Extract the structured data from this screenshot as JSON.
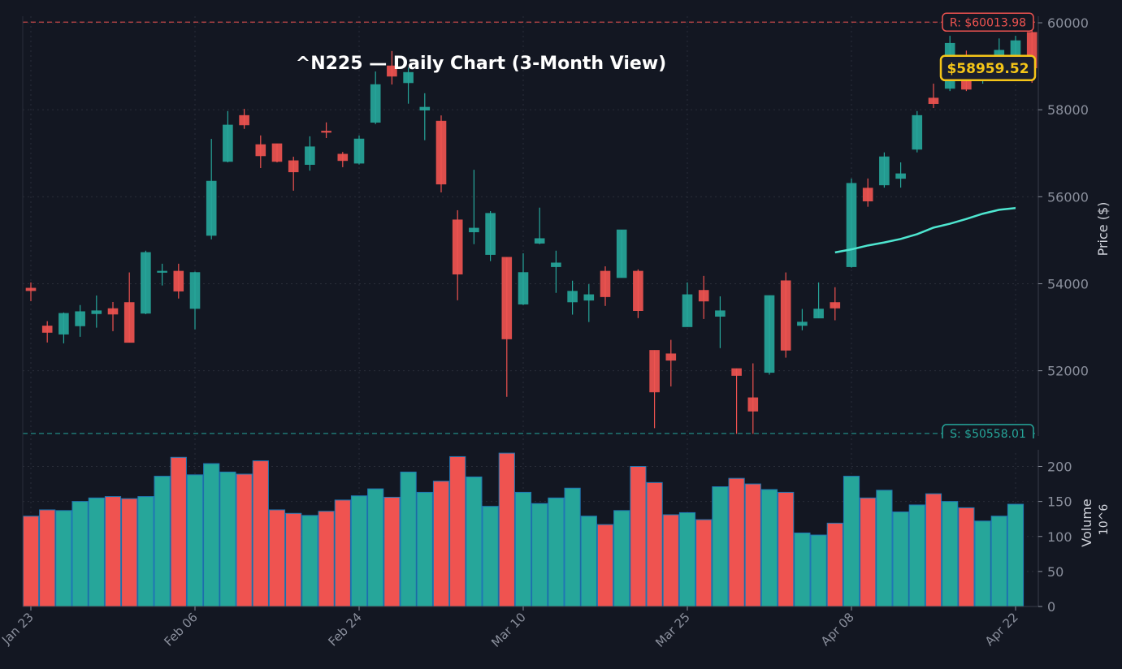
{
  "chart_data": {
    "type": "candlestick",
    "title": "^N225 — Daily Chart (3-Month View)",
    "ylabel": "Price ($)",
    "volume_ylabel": "Volume",
    "volume_unit": "10^6",
    "ylim": [
      50500,
      60150
    ],
    "volume_ylim": [
      0,
      240
    ],
    "yticks": [
      52000,
      54000,
      56000,
      58000,
      60000
    ],
    "volume_yticks": [
      0,
      50,
      100,
      150,
      200
    ],
    "grid": true,
    "xticks": [
      {
        "index": 0,
        "label": "Jan 23"
      },
      {
        "index": 10,
        "label": "Feb 06"
      },
      {
        "index": 20,
        "label": "Feb 24"
      },
      {
        "index": 30,
        "label": "Mar 10"
      },
      {
        "index": 40,
        "label": "Mar 25"
      },
      {
        "index": 50,
        "label": "Apr 08"
      },
      {
        "index": 60,
        "label": "Apr 22"
      }
    ],
    "colors": {
      "background": "#131722",
      "up": "#26a69a",
      "down": "#ef5350",
      "ma": "#4ee6d0",
      "grid": "#2a2e39",
      "volume_edge": "#1f77b4",
      "price_label": "#f5c518"
    },
    "resistance": {
      "value": 60013.98,
      "label": "R: $60013.98"
    },
    "support": {
      "value": 50558.01,
      "label": "S: $50558.01"
    },
    "last_price": {
      "value": 58959.52,
      "label": "$58959.52"
    },
    "ohlc": [
      [
        53900,
        54030,
        53600,
        53840
      ],
      [
        53030,
        53140,
        52650,
        52880
      ],
      [
        52840,
        53340,
        52630,
        53320
      ],
      [
        53030,
        53510,
        52780,
        53360
      ],
      [
        53310,
        53730,
        52990,
        53380
      ],
      [
        53430,
        53580,
        52910,
        53300
      ],
      [
        53570,
        54260,
        52650,
        52650
      ],
      [
        53320,
        54760,
        53300,
        54720
      ],
      [
        54260,
        54460,
        53960,
        54290
      ],
      [
        54290,
        54460,
        53660,
        53830
      ],
      [
        53430,
        54280,
        52950,
        54260
      ],
      [
        55110,
        57330,
        55020,
        56360
      ],
      [
        56810,
        57970,
        56790,
        57650
      ],
      [
        57870,
        58020,
        57560,
        57650
      ],
      [
        57200,
        57410,
        56660,
        56940
      ],
      [
        57220,
        57220,
        56790,
        56810
      ],
      [
        56830,
        56920,
        56140,
        56570
      ],
      [
        56740,
        57390,
        56600,
        57150
      ],
      [
        57510,
        57710,
        57350,
        57480
      ],
      [
        56980,
        57030,
        56680,
        56830
      ],
      [
        56770,
        57410,
        56740,
        57330
      ],
      [
        57710,
        58880,
        57670,
        58580
      ],
      [
        59010,
        59350,
        58580,
        58770
      ],
      [
        58620,
        58970,
        58140,
        58860
      ],
      [
        57990,
        58380,
        57300,
        58060
      ],
      [
        57740,
        57870,
        56100,
        56290
      ],
      [
        55470,
        55690,
        53620,
        54220
      ],
      [
        55190,
        56620,
        54910,
        55280
      ],
      [
        54670,
        55670,
        54520,
        55620
      ],
      [
        54610,
        54610,
        51400,
        52730
      ],
      [
        53530,
        54700,
        53510,
        54260
      ],
      [
        54930,
        55750,
        54910,
        55040
      ],
      [
        54390,
        54760,
        53790,
        54480
      ],
      [
        53580,
        54070,
        53290,
        53830
      ],
      [
        53620,
        53990,
        53120,
        53750
      ],
      [
        54290,
        54400,
        53490,
        53700
      ],
      [
        54140,
        55240,
        54140,
        55240
      ],
      [
        54290,
        54330,
        53210,
        53380
      ],
      [
        52470,
        52470,
        50680,
        51510
      ],
      [
        52390,
        52710,
        51640,
        52240
      ],
      [
        53010,
        54030,
        53010,
        53750
      ],
      [
        53850,
        54180,
        53190,
        53600
      ],
      [
        53250,
        53710,
        52520,
        53380
      ],
      [
        52050,
        52050,
        50550,
        51890
      ],
      [
        51380,
        52170,
        50550,
        51070
      ],
      [
        51960,
        53730,
        51910,
        53730
      ],
      [
        54070,
        54260,
        52300,
        52470
      ],
      [
        53040,
        53420,
        52930,
        53120
      ],
      [
        53210,
        54030,
        53210,
        53420
      ],
      [
        53570,
        53920,
        53160,
        53440
      ],
      [
        54390,
        56420,
        54370,
        56310
      ],
      [
        56200,
        56420,
        55770,
        55900
      ],
      [
        56270,
        57020,
        56210,
        56920
      ],
      [
        56420,
        56790,
        56210,
        56530
      ],
      [
        57090,
        57970,
        57020,
        57870
      ],
      [
        58270,
        58600,
        58040,
        58140
      ],
      [
        58490,
        59700,
        58430,
        59530
      ],
      [
        58900,
        59360,
        58430,
        58470
      ],
      [
        58700,
        59250,
        58600,
        59100
      ],
      [
        58900,
        59640,
        58800,
        59370
      ],
      [
        59000,
        59700,
        58900,
        59590
      ],
      [
        59780,
        60014,
        58620,
        58960
      ]
    ],
    "volume": [
      129,
      138,
      137,
      150,
      155,
      157,
      154,
      157,
      186,
      213,
      188,
      204,
      192,
      189,
      208,
      138,
      133,
      130,
      136,
      152,
      158,
      168,
      156,
      192,
      163,
      179,
      214,
      185,
      143,
      219,
      163,
      147,
      155,
      169,
      129,
      117,
      137,
      200,
      177,
      131,
      134,
      124,
      171,
      183,
      175,
      167,
      163,
      105,
      102,
      119,
      186,
      155,
      166,
      135,
      145,
      161,
      150,
      141,
      122,
      129,
      146,
      null
    ],
    "moving_average": {
      "start_index": 49,
      "values": [
        54720,
        54790,
        54880,
        54950,
        55030,
        55140,
        55290,
        55380,
        55490,
        55610,
        55700,
        55740
      ]
    }
  }
}
